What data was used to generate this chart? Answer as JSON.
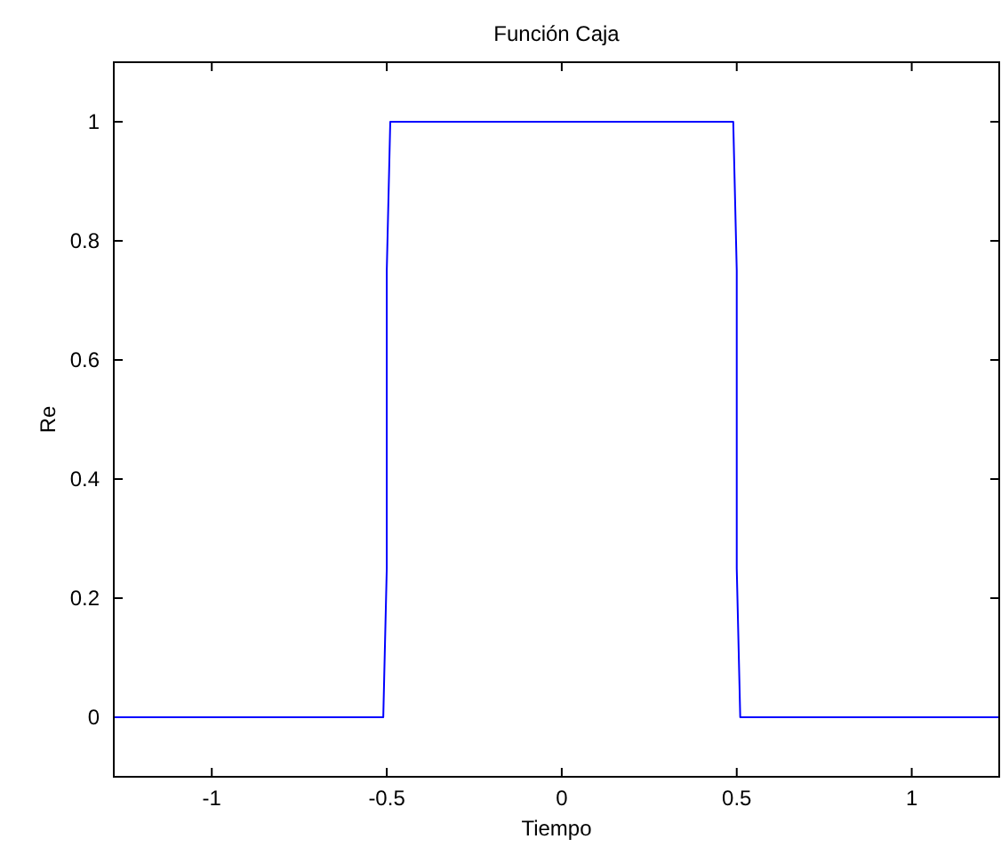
{
  "chart_data": {
    "type": "line",
    "title": "Función Caja",
    "xlabel": "Tiempo",
    "ylabel": "Re",
    "x": [
      -1.28,
      -0.51,
      -0.5,
      -0.5,
      -0.49,
      0.49,
      0.5,
      0.5,
      0.51,
      1.25
    ],
    "series": [
      {
        "color": "#0000ff",
        "values": [
          0,
          0,
          0.25,
          0.75,
          1,
          1,
          0.75,
          0.25,
          0,
          0
        ]
      }
    ],
    "xlim": [
      -1.28,
      1.25
    ],
    "ylim": [
      -0.1,
      1.1
    ],
    "xticks": [
      -1,
      -0.5,
      0,
      0.5,
      1
    ],
    "yticks": [
      0,
      0.2,
      0.4,
      0.6,
      0.8,
      1
    ],
    "grid": false
  }
}
